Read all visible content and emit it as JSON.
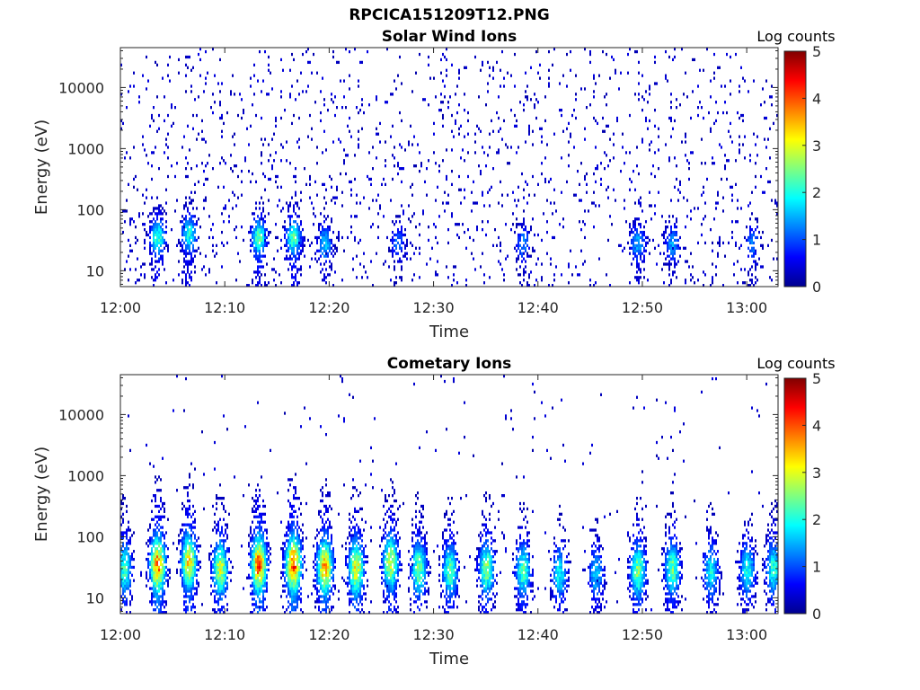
{
  "title": "RPCICA151209T12.PNG",
  "chart_data": [
    {
      "type": "heatmap",
      "title": "Solar Wind Ions",
      "xlabel": "Time",
      "ylabel": "Energy (eV)",
      "x_ticks": [
        "12:00",
        "12:10",
        "12:20",
        "12:30",
        "12:40",
        "12:50",
        "13:00"
      ],
      "xlim": [
        "12:00",
        "13:03"
      ],
      "y_scale": "log",
      "y_ticks": [
        10,
        100,
        1000,
        10000
      ],
      "y_tick_labels": [
        "10",
        "100",
        "1000",
        "10000"
      ],
      "ylim": [
        5.5,
        45000
      ],
      "colorbar": {
        "label": "Log counts",
        "range": [
          0,
          5
        ],
        "ticks": [
          "0",
          "1",
          "2",
          "3",
          "4",
          "5"
        ],
        "colormap": "jet"
      },
      "bursts": [
        {
          "t": 3.5,
          "e": 35,
          "z": 1.7
        },
        {
          "t": 6.5,
          "e": 40,
          "z": 1.6
        },
        {
          "t": 13.2,
          "e": 35,
          "z": 1.8
        },
        {
          "t": 16.5,
          "e": 35,
          "z": 1.8
        },
        {
          "t": 19.5,
          "e": 28,
          "z": 1.3
        },
        {
          "t": 26.5,
          "e": 30,
          "z": 0.9
        },
        {
          "t": 38.5,
          "e": 28,
          "z": 1.0
        },
        {
          "t": 49.5,
          "e": 28,
          "z": 1.2
        },
        {
          "t": 52.8,
          "e": 28,
          "z": 1.1
        },
        {
          "t": 60.5,
          "e": 28,
          "z": 1.0
        }
      ]
    },
    {
      "type": "heatmap",
      "title": "Cometary Ions",
      "xlabel": "Time",
      "ylabel": "Energy (eV)",
      "x_ticks": [
        "12:00",
        "12:10",
        "12:20",
        "12:30",
        "12:40",
        "12:50",
        "13:00"
      ],
      "xlim": [
        "12:00",
        "13:03"
      ],
      "y_scale": "log",
      "y_ticks": [
        10,
        100,
        1000,
        10000
      ],
      "y_tick_labels": [
        "10",
        "100",
        "1000",
        "10000"
      ],
      "ylim": [
        5.5,
        45000
      ],
      "colorbar": {
        "label": "Log counts",
        "range": [
          0,
          5
        ],
        "ticks": [
          "0",
          "1",
          "2",
          "3",
          "4",
          "5"
        ],
        "colormap": "jet"
      },
      "bursts": [
        {
          "t": 0.3,
          "e": 30,
          "z": 1.8
        },
        {
          "t": 3.5,
          "e": 35,
          "z": 3.0
        },
        {
          "t": 6.5,
          "e": 40,
          "z": 2.6
        },
        {
          "t": 9.5,
          "e": 30,
          "z": 2.3
        },
        {
          "t": 13.2,
          "e": 35,
          "z": 3.1
        },
        {
          "t": 16.5,
          "e": 35,
          "z": 3.2
        },
        {
          "t": 19.5,
          "e": 32,
          "z": 2.8
        },
        {
          "t": 22.5,
          "e": 30,
          "z": 2.5
        },
        {
          "t": 25.8,
          "e": 38,
          "z": 2.3
        },
        {
          "t": 28.5,
          "e": 30,
          "z": 2.0
        },
        {
          "t": 31.5,
          "e": 28,
          "z": 1.9
        },
        {
          "t": 35.0,
          "e": 30,
          "z": 2.0
        },
        {
          "t": 38.5,
          "e": 28,
          "z": 1.8
        },
        {
          "t": 42.0,
          "e": 25,
          "z": 1.5
        },
        {
          "t": 45.5,
          "e": 25,
          "z": 1.3
        },
        {
          "t": 49.5,
          "e": 28,
          "z": 2.0
        },
        {
          "t": 52.8,
          "e": 30,
          "z": 1.9
        },
        {
          "t": 56.5,
          "e": 28,
          "z": 1.5
        },
        {
          "t": 60.0,
          "e": 28,
          "z": 1.6
        },
        {
          "t": 62.5,
          "e": 30,
          "z": 1.7
        }
      ]
    }
  ]
}
